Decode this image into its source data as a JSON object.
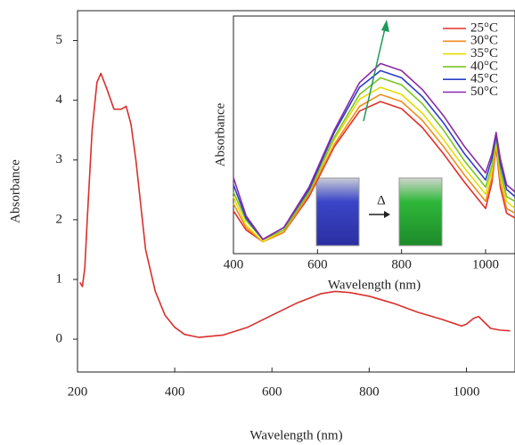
{
  "chart_data": [
    {
      "type": "line",
      "xlabel": "Wavelength (nm)",
      "ylabel": "Absorbance",
      "color": "#d9302c",
      "xlim": [
        200,
        1100
      ],
      "ylim": [
        -0.55,
        5.5
      ],
      "xticks": [
        200,
        400,
        600,
        800,
        1000
      ],
      "yticks": [
        0,
        1,
        2,
        3,
        4,
        5
      ],
      "x": [
        205,
        210,
        215,
        220,
        230,
        240,
        248,
        260,
        275,
        290,
        300,
        310,
        320,
        340,
        360,
        380,
        400,
        420,
        450,
        500,
        550,
        600,
        650,
        700,
        730,
        760,
        800,
        850,
        900,
        950,
        990,
        1000,
        1015,
        1025,
        1035,
        1050,
        1070,
        1090
      ],
      "values": [
        0.95,
        0.88,
        1.2,
        2.0,
        3.5,
        4.3,
        4.45,
        4.2,
        3.85,
        3.85,
        3.9,
        3.6,
        3.0,
        1.5,
        0.8,
        0.4,
        0.2,
        0.08,
        0.03,
        0.07,
        0.2,
        0.4,
        0.6,
        0.76,
        0.8,
        0.78,
        0.72,
        0.6,
        0.45,
        0.33,
        0.22,
        0.25,
        0.35,
        0.38,
        0.3,
        0.18,
        0.15,
        0.14
      ]
    },
    {
      "type": "line",
      "xlabel": "Wavelength (nm)",
      "ylabel": "Absorbance",
      "legend": "upper right",
      "annotation": "Δ",
      "xlim": [
        400,
        1070
      ],
      "ylim": [
        0,
        1
      ],
      "xticks": [
        400,
        600,
        800,
        1000
      ],
      "x": [
        400,
        430,
        470,
        520,
        580,
        640,
        700,
        750,
        800,
        850,
        900,
        950,
        1000,
        1015,
        1025,
        1035,
        1050,
        1070
      ],
      "series": [
        {
          "name": "25°C",
          "color": "#e0302a",
          "values": [
            0.18,
            0.1,
            0.05,
            0.09,
            0.24,
            0.45,
            0.6,
            0.64,
            0.61,
            0.53,
            0.42,
            0.3,
            0.19,
            0.3,
            0.45,
            0.28,
            0.17,
            0.15
          ]
        },
        {
          "name": "30°C",
          "color": "#f08c1e",
          "values": [
            0.21,
            0.11,
            0.05,
            0.09,
            0.25,
            0.46,
            0.62,
            0.67,
            0.64,
            0.56,
            0.45,
            0.33,
            0.22,
            0.32,
            0.46,
            0.3,
            0.19,
            0.17
          ]
        },
        {
          "name": "35°C",
          "color": "#e6de00",
          "values": [
            0.24,
            0.12,
            0.05,
            0.1,
            0.26,
            0.48,
            0.65,
            0.7,
            0.67,
            0.59,
            0.48,
            0.36,
            0.25,
            0.35,
            0.47,
            0.33,
            0.22,
            0.19
          ]
        },
        {
          "name": "40°C",
          "color": "#7cc520",
          "values": [
            0.26,
            0.14,
            0.06,
            0.1,
            0.26,
            0.49,
            0.67,
            0.74,
            0.71,
            0.63,
            0.52,
            0.39,
            0.28,
            0.37,
            0.49,
            0.35,
            0.24,
            0.22
          ]
        },
        {
          "name": "45°C",
          "color": "#2a3ec8",
          "values": [
            0.29,
            0.15,
            0.06,
            0.11,
            0.27,
            0.51,
            0.7,
            0.77,
            0.74,
            0.66,
            0.55,
            0.42,
            0.31,
            0.4,
            0.5,
            0.38,
            0.27,
            0.24
          ]
        },
        {
          "name": "50°C",
          "color": "#8a2aa8",
          "values": [
            0.32,
            0.16,
            0.06,
            0.11,
            0.28,
            0.52,
            0.72,
            0.8,
            0.77,
            0.69,
            0.58,
            0.45,
            0.34,
            0.42,
            0.51,
            0.4,
            0.29,
            0.26
          ]
        }
      ]
    }
  ]
}
